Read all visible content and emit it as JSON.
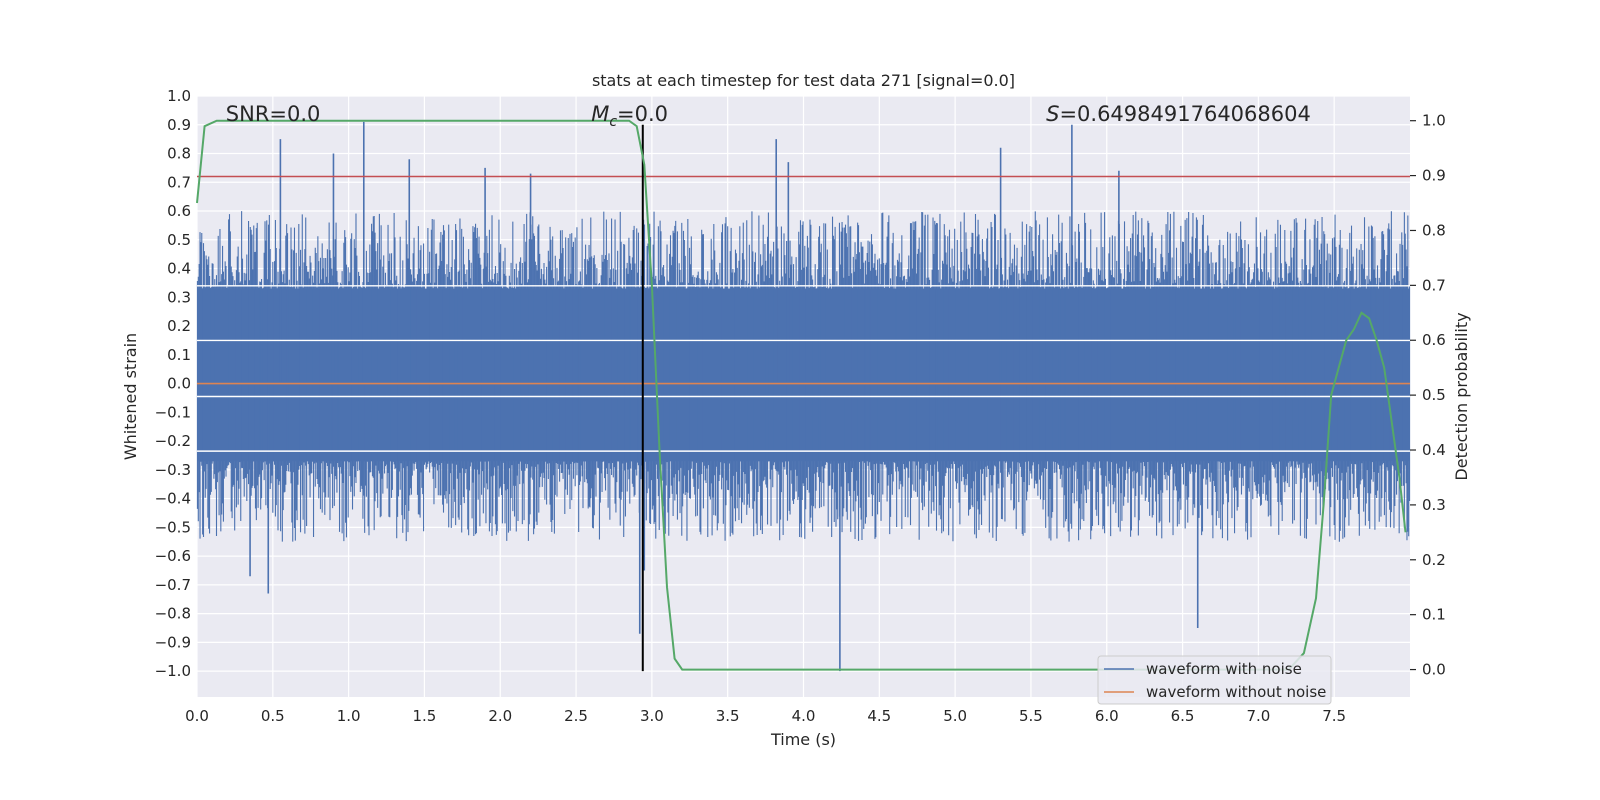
{
  "chart_data": {
    "type": "line",
    "title": "stats at each timestep for test data 271 [signal=0.0]",
    "xlabel": "Time (s)",
    "ylabel": "Whitened strain",
    "ylabel_right": "Detection probability",
    "xlim": [
      0.0,
      8.0
    ],
    "ylim": [
      -1.09,
      1.0
    ],
    "ylim_right": [
      -0.05,
      1.045
    ],
    "x_ticks": [
      "0.0",
      "0.5",
      "1.0",
      "1.5",
      "2.0",
      "2.5",
      "3.0",
      "3.5",
      "4.0",
      "4.5",
      "5.0",
      "5.5",
      "6.0",
      "6.5",
      "7.0",
      "7.5"
    ],
    "y_ticks": [
      "1.0",
      "0.9",
      "0.8",
      "0.7",
      "0.6",
      "0.5",
      "0.4",
      "0.3",
      "0.2",
      "0.1",
      "0.0",
      "−0.1",
      "−0.2",
      "−0.3",
      "−0.4",
      "−0.5",
      "−0.6",
      "−0.7",
      "−0.8",
      "−0.9",
      "−1.0"
    ],
    "y_ticks_right": [
      "1.0",
      "0.9",
      "0.8",
      "0.7",
      "0.6",
      "0.5",
      "0.4",
      "0.3",
      "0.2",
      "0.1",
      "0.0"
    ],
    "grid": true,
    "legend_position": "bottom-right",
    "annotations": {
      "snr": "SNR=0.0",
      "mc_symbol": "M",
      "mc_sub": "c",
      "mc_value": "=0.0",
      "s_symbol": "S",
      "s_value": "=0.6498491764068604"
    },
    "series": [
      {
        "name": "waveform with noise",
        "color": "#4c72b0",
        "axis": "left",
        "kind": "noise",
        "band_inner": [
          -0.27,
          0.33
        ],
        "band_outer": [
          -0.5,
          0.55
        ],
        "spikes": [
          {
            "x": 0.55,
            "y": 0.85
          },
          {
            "x": 0.9,
            "y": 0.8
          },
          {
            "x": 1.1,
            "y": 0.91
          },
          {
            "x": 1.4,
            "y": 0.78
          },
          {
            "x": 1.9,
            "y": 0.75
          },
          {
            "x": 2.2,
            "y": 0.73
          },
          {
            "x": 3.82,
            "y": 0.85
          },
          {
            "x": 3.9,
            "y": 0.77
          },
          {
            "x": 5.3,
            "y": 0.82
          },
          {
            "x": 5.77,
            "y": 0.9
          },
          {
            "x": 6.08,
            "y": 0.74
          },
          {
            "x": 0.47,
            "y": -0.73
          },
          {
            "x": 2.92,
            "y": -0.87
          },
          {
            "x": 2.95,
            "y": -0.65
          },
          {
            "x": 4.24,
            "y": -1.0
          },
          {
            "x": 6.6,
            "y": -0.85
          },
          {
            "x": 0.35,
            "y": -0.67
          }
        ]
      },
      {
        "name": "waveform without noise",
        "color": "#dd8452",
        "axis": "left",
        "x": [
          0.0,
          8.0
        ],
        "y": [
          0.0,
          0.0
        ]
      },
      {
        "name": "Detection probability",
        "color": "#55a868",
        "axis": "right",
        "x": [
          0.0,
          0.05,
          0.13,
          0.25,
          0.5,
          1.0,
          2.0,
          2.7,
          2.85,
          2.9,
          2.95,
          3.0,
          3.05,
          3.1,
          3.15,
          3.2,
          3.3,
          3.5,
          4.0,
          5.0,
          6.0,
          7.0,
          7.2,
          7.3,
          7.38,
          7.43,
          7.48,
          7.53,
          7.58,
          7.63,
          7.68,
          7.73,
          7.78,
          7.83,
          7.88,
          7.93,
          7.97
        ],
        "y": [
          0.85,
          0.99,
          1.0,
          1.0,
          1.0,
          1.0,
          1.0,
          1.0,
          1.0,
          0.99,
          0.92,
          0.7,
          0.4,
          0.15,
          0.02,
          0.0,
          0.0,
          0.0,
          0.0,
          0.0,
          0.0,
          0.0,
          0.0,
          0.03,
          0.13,
          0.3,
          0.5,
          0.55,
          0.6,
          0.62,
          0.65,
          0.64,
          0.6,
          0.55,
          0.45,
          0.35,
          0.25
        ]
      }
    ],
    "reference_lines": [
      {
        "axis": "left",
        "orientation": "horizontal",
        "y": 0.72,
        "color": "#c44e52"
      },
      {
        "axis": "left",
        "orientation": "vertical",
        "x": 2.94,
        "y": [
          -1.0,
          0.9
        ],
        "color": "#000000"
      }
    ],
    "white_bands": [
      {
        "axis": "left",
        "y": 0.34
      },
      {
        "axis": "left",
        "y": 0.15
      },
      {
        "axis": "left",
        "y": -0.045
      },
      {
        "axis": "left",
        "y": -0.235
      }
    ]
  }
}
